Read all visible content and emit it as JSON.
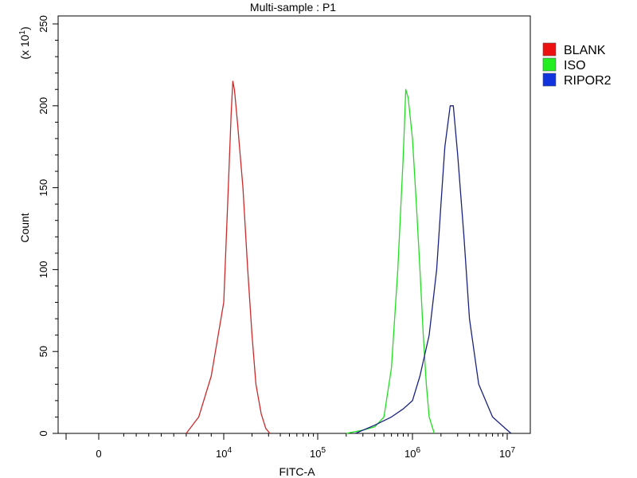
{
  "chart_data": {
    "type": "line",
    "title": "Multi-sample : P1",
    "xlabel": "FITC-A",
    "ylabel": "Count",
    "y_multiplier_label": "(x 10",
    "y_multiplier_exp": "1",
    "y_multiplier_close": ")",
    "x_scale": "biexponential",
    "ylim": [
      0,
      250
    ],
    "y_ticks": [
      "0",
      "50",
      "100",
      "150",
      "200",
      "250"
    ],
    "x_ticks": [
      {
        "value": 0,
        "base": "0",
        "exp": ""
      },
      {
        "value": 10000,
        "base": "10",
        "exp": "4"
      },
      {
        "value": 100000,
        "base": "10",
        "exp": "5"
      },
      {
        "value": 1000000,
        "base": "10",
        "exp": "6"
      },
      {
        "value": 10000000,
        "base": "10",
        "exp": "7"
      }
    ],
    "grid": false,
    "legend_position": "top-right outside",
    "series": [
      {
        "name": "BLANK",
        "color": "#cc2a2a",
        "swatch": "#ee1111",
        "x": [
          7000,
          8000,
          9000,
          10000,
          11000,
          12000,
          12500,
          13000,
          14000,
          16000,
          18000,
          20000,
          22000,
          25000,
          28000,
          31000
        ],
        "y": [
          0,
          10,
          35,
          80,
          140,
          195,
          215,
          210,
          190,
          150,
          100,
          60,
          30,
          12,
          3,
          0
        ]
      },
      {
        "name": "ISO",
        "color": "#22dd22",
        "swatch": "#22ee22",
        "x": [
          200000,
          300000,
          400000,
          500000,
          600000,
          700000,
          800000,
          850000,
          900000,
          1000000,
          1100000,
          1200000,
          1300000,
          1400000,
          1500000,
          1700000
        ],
        "y": [
          0,
          2,
          4,
          10,
          40,
          100,
          170,
          210,
          205,
          180,
          140,
          100,
          60,
          30,
          10,
          0
        ]
      },
      {
        "name": "RIPOR2",
        "color": "#1a237e",
        "swatch": "#1133dd",
        "x": [
          250000,
          400000,
          600000,
          800000,
          1000000,
          1200000,
          1500000,
          1800000,
          2000000,
          2200000,
          2500000,
          2700000,
          3000000,
          3500000,
          4000000,
          5000000,
          7000000,
          10000000,
          11000000
        ],
        "y": [
          0,
          5,
          10,
          15,
          20,
          35,
          60,
          100,
          140,
          175,
          200,
          200,
          170,
          120,
          70,
          30,
          10,
          2,
          0
        ]
      }
    ]
  }
}
